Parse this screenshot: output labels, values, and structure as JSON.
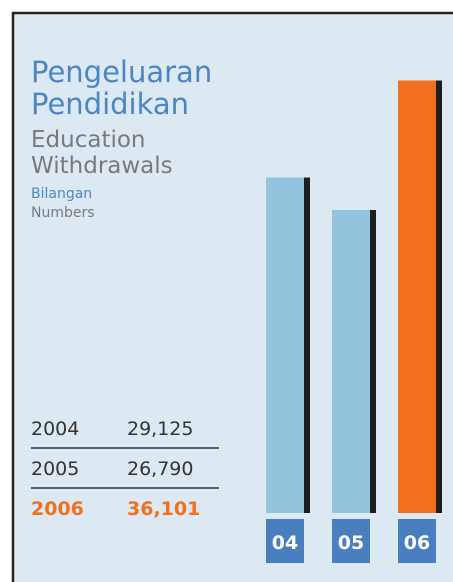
{
  "chart_data": {
    "type": "bar",
    "title": [
      "Pengeluaran",
      "Pendidikan"
    ],
    "subtitle": [
      "Education",
      "Withdrawals"
    ],
    "ylabel": [
      "Bilangan",
      "Numbers"
    ],
    "categories": [
      "04",
      "05",
      "06"
    ],
    "years": [
      "2004",
      "2005",
      "2006"
    ],
    "values": [
      29125,
      26790,
      36101
    ],
    "value_labels": [
      "29,125",
      "26,790",
      "36,101"
    ],
    "colors": [
      "#93c4dd",
      "#93c4dd",
      "#f07020"
    ],
    "table_colors": [
      "#333333",
      "#333333",
      "#f07020"
    ],
    "ylim": [
      5000,
      37000
    ]
  }
}
